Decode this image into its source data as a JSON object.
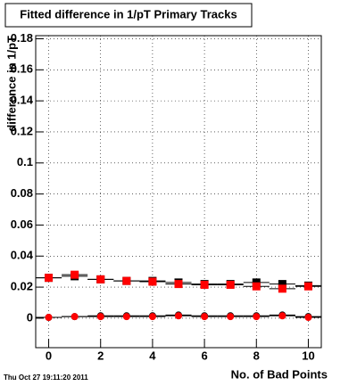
{
  "chart_data": {
    "type": "scatter",
    "title": "Fitted difference in 1/pT Primary Tracks",
    "y_label": "difference in 1/pT",
    "x_label": "No. of Bad Points",
    "footer": "Thu Oct 27 19:11:20 2011",
    "x": [
      0,
      1,
      2,
      3,
      4,
      5,
      6,
      7,
      8,
      9,
      10
    ],
    "xlim": [
      -0.5,
      10.5
    ],
    "xticks": [
      0,
      2,
      4,
      6,
      8,
      10
    ],
    "ylim": [
      -0.019,
      0.182
    ],
    "yticks": [
      0,
      0.02,
      0.04,
      0.06,
      0.08,
      0.1,
      0.12,
      0.14,
      0.16,
      0.18
    ],
    "grid": true,
    "series": [
      {
        "color": "#000000",
        "marker": "square",
        "values": [
          0.026,
          0.027,
          0.025,
          0.024,
          0.024,
          0.023,
          0.022,
          0.022,
          0.023,
          0.022,
          0.021
        ]
      },
      {
        "color": "#ff0000",
        "marker": "square",
        "values": [
          0.026,
          0.028,
          0.025,
          0.024,
          0.0235,
          0.022,
          0.0215,
          0.0215,
          0.0205,
          0.019,
          0.0205
        ]
      },
      {
        "color": "#000000",
        "marker": "circle",
        "values": [
          0.0005,
          0.001,
          0.0015,
          0.0015,
          0.0015,
          0.002,
          0.0015,
          0.0015,
          0.0015,
          0.002,
          0.001
        ]
      },
      {
        "color": "#ff0000",
        "marker": "circle",
        "values": [
          0.0005,
          0.001,
          0.001,
          0.001,
          0.001,
          0.0015,
          0.001,
          0.001,
          0.001,
          0.0015,
          0.0005
        ]
      }
    ]
  }
}
